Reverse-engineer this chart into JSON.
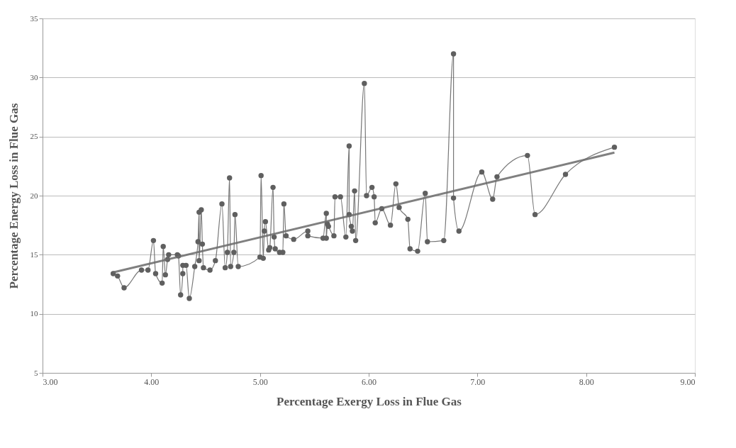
{
  "chart_data": {
    "type": "line",
    "xlabel": "Percentage Exergy Loss in Flue Gas",
    "ylabel": "Percentage Energy Loss in Flue Gas",
    "xlim": [
      3,
      9
    ],
    "xticks": [
      {
        "value": 3,
        "label": "3.00"
      },
      {
        "value": 4,
        "label": "4.00"
      },
      {
        "value": 5,
        "label": "5.00"
      },
      {
        "value": 6,
        "label": "6.00"
      },
      {
        "value": 7,
        "label": "7.00"
      },
      {
        "value": 8,
        "label": "8.00"
      },
      {
        "value": 9,
        "label": "9.00"
      }
    ],
    "ylim": [
      5,
      35
    ],
    "yticks": [
      5,
      10,
      15,
      20,
      25,
      30,
      35
    ],
    "grid": "y",
    "series": [
      {
        "marker": "circle",
        "color": "#5f5f5f",
        "x": [
          3.65,
          3.69,
          3.75,
          3.91,
          3.97,
          4.02,
          4.04,
          4.1,
          4.11,
          4.13,
          4.15,
          4.16,
          4.24,
          4.25,
          4.27,
          4.29,
          4.29,
          4.32,
          4.35,
          4.4,
          4.43,
          4.44,
          4.44,
          4.46,
          4.47,
          4.48,
          4.54,
          4.59,
          4.65,
          4.68,
          4.7,
          4.72,
          4.73,
          4.76,
          4.77,
          4.8,
          5.0,
          5.01,
          5.03,
          5.04,
          5.05,
          5.08,
          5.09,
          5.12,
          5.13,
          5.14,
          5.18,
          5.21,
          5.22,
          5.24,
          5.31,
          5.44,
          5.44,
          5.58,
          5.61,
          5.61,
          5.62,
          5.63,
          5.68,
          5.69,
          5.74,
          5.79,
          5.82,
          5.82,
          5.84,
          5.85,
          5.87,
          5.88,
          5.96,
          5.98,
          6.03,
          6.05,
          6.06,
          6.12,
          6.2,
          6.25,
          6.28,
          6.36,
          6.38,
          6.45,
          6.52,
          6.54,
          6.69,
          6.78,
          6.78,
          6.83,
          7.04,
          7.14,
          7.18,
          7.46,
          7.53,
          7.81,
          8.26
        ],
        "values": [
          13.4,
          13.2,
          12.2,
          13.7,
          13.7,
          16.2,
          13.4,
          12.6,
          15.7,
          13.3,
          14.6,
          15.0,
          15.0,
          14.9,
          11.6,
          13.4,
          14.1,
          14.1,
          11.3,
          14.0,
          16.1,
          18.6,
          14.5,
          18.8,
          15.9,
          13.9,
          13.7,
          14.5,
          19.3,
          13.9,
          15.2,
          21.5,
          14.0,
          15.2,
          18.4,
          14.0,
          14.8,
          21.7,
          14.7,
          17.0,
          17.8,
          15.4,
          15.6,
          20.7,
          16.5,
          15.5,
          15.2,
          15.2,
          19.3,
          16.6,
          16.3,
          17.0,
          16.6,
          16.4,
          18.5,
          16.4,
          17.6,
          17.4,
          16.6,
          19.9,
          19.9,
          16.5,
          24.2,
          18.4,
          17.4,
          17.0,
          20.4,
          16.2,
          29.5,
          20.0,
          20.7,
          19.9,
          17.7,
          18.9,
          17.5,
          21.0,
          19.0,
          18.0,
          15.5,
          15.3,
          20.2,
          16.1,
          16.2,
          32.0,
          19.8,
          17.0,
          22.0,
          19.7,
          21.6,
          23.4,
          18.4,
          21.8,
          24.1
        ]
      },
      {
        "marker": "none",
        "color": "#6a6a6a",
        "x": [
          3.65,
          8.26
        ],
        "values": [
          13.5,
          23.65
        ]
      }
    ]
  }
}
